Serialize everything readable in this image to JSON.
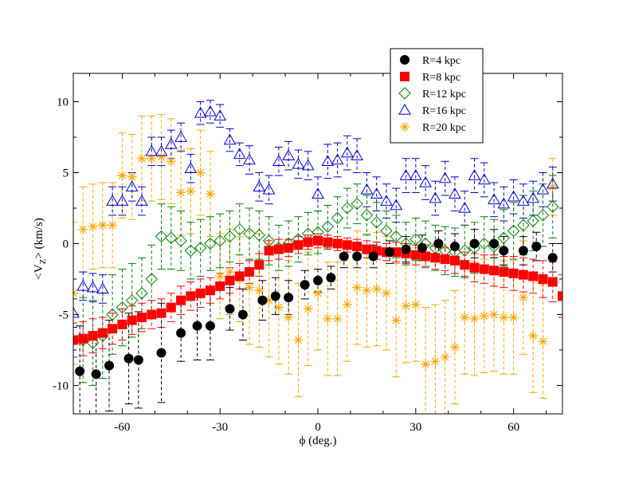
{
  "chart_data": {
    "type": "scatter",
    "title": "",
    "xlabel": "ϕ (deg.)",
    "ylabel_main": "<V",
    "ylabel_sub": "Z",
    "ylabel_tail": "> (km/s)",
    "xlim": [
      -75,
      75
    ],
    "ylim": [
      -12,
      12
    ],
    "xticks": [
      -60,
      -30,
      0,
      30,
      60
    ],
    "yticks": [
      -10,
      -5,
      0,
      5,
      10
    ],
    "grid": false,
    "legend_position": "top-right",
    "series": [
      {
        "name": "R=4 kpc",
        "marker": "circle",
        "color": "#000000",
        "filled": true,
        "x": [
          -73,
          -68,
          -64,
          -58,
          -55,
          -48,
          -42,
          -37,
          -33,
          -27,
          -23,
          -17,
          -13,
          -9,
          -4,
          0,
          4,
          8,
          12,
          17,
          22,
          27,
          32,
          37,
          42,
          48,
          54,
          57,
          63,
          67,
          72
        ],
        "y": [
          -9.0,
          -9.2,
          -8.6,
          -8.1,
          -8.2,
          -7.7,
          -6.3,
          -5.8,
          -5.8,
          -4.6,
          -5.0,
          -4.0,
          -3.7,
          -3.8,
          -2.9,
          -2.6,
          -2.4,
          -0.9,
          -0.9,
          -0.9,
          -0.6,
          -0.4,
          -0.3,
          0.0,
          -0.2,
          0.0,
          0.0,
          -0.5,
          -0.5,
          -0.2,
          -1.0
        ],
        "err": [
          3.2,
          3.0,
          3.2,
          3.2,
          3.4,
          3.5,
          2.0,
          2.4,
          2.4,
          1.5,
          1.8,
          1.4,
          1.3,
          1.2,
          1.0,
          0.8,
          0.8,
          0.8,
          0.8,
          0.8,
          0.8,
          0.9,
          0.9,
          0.9,
          0.9,
          1.0,
          1.0,
          1.0,
          1.0,
          1.0,
          1.0
        ]
      },
      {
        "name": "R=8 kpc",
        "marker": "square",
        "color": "#ff0000",
        "filled": true,
        "x": [
          -75,
          -72,
          -69,
          -66,
          -63,
          -60,
          -57,
          -54,
          -51,
          -48,
          -45,
          -42,
          -39,
          -36,
          -33,
          -30,
          -27,
          -24,
          -21,
          -18,
          -15,
          -12,
          -9,
          -6,
          -3,
          0,
          3,
          6,
          9,
          12,
          15,
          18,
          21,
          24,
          27,
          30,
          33,
          36,
          39,
          42,
          45,
          48,
          51,
          54,
          57,
          60,
          63,
          66,
          69,
          72,
          75
        ],
        "y": [
          -6.8,
          -6.7,
          -6.5,
          -6.3,
          -6.0,
          -5.7,
          -5.4,
          -5.2,
          -5.0,
          -4.9,
          -4.5,
          -4.0,
          -3.7,
          -3.5,
          -3.3,
          -3.0,
          -2.6,
          -2.3,
          -2.0,
          -1.5,
          -0.5,
          -0.4,
          -0.3,
          -0.1,
          0.1,
          0.2,
          0.1,
          0.0,
          -0.1,
          -0.2,
          -0.4,
          -0.5,
          -0.6,
          -0.6,
          -0.7,
          -0.8,
          -0.9,
          -1.0,
          -1.1,
          -1.2,
          -1.5,
          -1.7,
          -1.8,
          -1.9,
          -2.0,
          -2.1,
          -2.2,
          -2.3,
          -2.5,
          -2.7,
          -3.7
        ],
        "err": [
          1.2,
          1.2,
          1.2,
          1.1,
          1.1,
          1.1,
          1.0,
          1.0,
          1.0,
          1.0,
          1.0,
          1.0,
          1.0,
          1.0,
          0.9,
          0.9,
          0.9,
          0.9,
          0.8,
          0.8,
          0.7,
          0.7,
          0.6,
          0.6,
          0.5,
          0.5,
          0.5,
          0.5,
          0.5,
          0.5,
          0.6,
          0.6,
          0.6,
          0.7,
          0.7,
          0.7,
          0.8,
          0.8,
          0.8,
          0.9,
          0.9,
          1.0,
          1.0,
          1.1,
          1.1,
          1.2,
          1.2,
          1.2,
          1.3,
          1.4,
          1.5
        ]
      },
      {
        "name": "R=12 kpc",
        "marker": "diamond",
        "color": "#008000",
        "filled": false,
        "x": [
          -72,
          -69,
          -66,
          -63,
          -60,
          -57,
          -54,
          -51,
          -48,
          -45,
          -42,
          -39,
          -36,
          -33,
          -30,
          -27,
          -24,
          -21,
          -18,
          -15,
          -12,
          -9,
          -6,
          -3,
          0,
          3,
          6,
          9,
          12,
          15,
          18,
          21,
          24,
          27,
          30,
          33,
          36,
          39,
          42,
          45,
          48,
          51,
          54,
          57,
          60,
          63,
          66,
          69,
          72
        ],
        "y": [
          -6.8,
          -7.0,
          -6.5,
          -5.0,
          -4.5,
          -4.0,
          -3.5,
          -2.5,
          0.5,
          0.4,
          0.2,
          -0.5,
          -0.3,
          0.0,
          0.2,
          0.5,
          1.0,
          0.7,
          0.6,
          0.2,
          -0.3,
          0.0,
          0.3,
          0.7,
          0.8,
          1.2,
          1.8,
          2.5,
          2.8,
          2.0,
          1.5,
          0.9,
          0.5,
          0.0,
          0.3,
          0.0,
          -0.3,
          -0.5,
          -0.6,
          -0.5,
          -0.3,
          0.0,
          -0.2,
          0.4,
          0.9,
          1.3,
          1.6,
          2.0,
          2.6
        ],
        "err": [
          3.0,
          3.0,
          3.0,
          2.8,
          2.7,
          2.6,
          2.5,
          2.4,
          2.3,
          2.2,
          2.1,
          2.0,
          2.0,
          1.9,
          1.9,
          1.8,
          1.8,
          1.8,
          1.7,
          1.7,
          1.6,
          1.6,
          1.6,
          1.5,
          1.5,
          1.5,
          1.5,
          1.4,
          1.4,
          1.4,
          1.4,
          1.4,
          1.5,
          1.5,
          1.5,
          1.6,
          1.6,
          1.7,
          1.7,
          1.8,
          1.8,
          1.9,
          1.9,
          2.0,
          2.0,
          2.1,
          2.1,
          2.2,
          2.2
        ]
      },
      {
        "name": "R=16 kpc",
        "marker": "triangle",
        "color": "#0000cd",
        "filled": false,
        "x": [
          -75,
          -72,
          -69,
          -66,
          -63,
          -60,
          -57,
          -54,
          -51,
          -48,
          -45,
          -42,
          -39,
          -36,
          -33,
          -30,
          -27,
          -24,
          -21,
          -18,
          -15,
          -12,
          -9,
          -6,
          -3,
          0,
          3,
          6,
          9,
          12,
          15,
          18,
          21,
          24,
          27,
          30,
          33,
          36,
          39,
          42,
          45,
          48,
          51,
          54,
          57,
          60,
          63,
          66,
          69,
          72
        ],
        "y": [
          -4.9,
          -3.0,
          -3.1,
          -3.2,
          3.0,
          3.0,
          4.0,
          3.0,
          6.5,
          6.5,
          7.0,
          7.5,
          5.3,
          9.2,
          9.3,
          9.0,
          7.3,
          6.3,
          5.9,
          4.0,
          3.8,
          5.8,
          6.2,
          5.6,
          5.5,
          3.5,
          5.8,
          5.9,
          6.4,
          6.2,
          3.8,
          3.5,
          3.0,
          2.7,
          4.8,
          4.8,
          4.3,
          3.2,
          4.6,
          3.5,
          2.5,
          4.8,
          4.5,
          3.1,
          2.8,
          3.3,
          3.0,
          3.2,
          3.8,
          4.2
        ],
        "err": [
          1.0,
          1.0,
          1.0,
          1.0,
          1.0,
          1.0,
          1.0,
          1.0,
          1.0,
          1.0,
          1.0,
          1.0,
          1.0,
          0.8,
          0.8,
          0.8,
          0.8,
          0.8,
          1.0,
          1.0,
          1.0,
          1.0,
          1.0,
          1.0,
          1.0,
          1.2,
          1.2,
          1.2,
          1.2,
          1.2,
          1.2,
          1.2,
          1.2,
          1.2,
          1.2,
          1.2,
          1.2,
          1.2,
          1.2,
          1.2,
          1.2,
          1.2,
          1.2,
          1.2,
          1.2,
          1.2,
          1.2,
          1.2,
          1.2,
          1.2
        ]
      },
      {
        "name": "R=20 kpc",
        "marker": "star",
        "color": "#ffa500",
        "filled": false,
        "x": [
          -75,
          -72,
          -69,
          -66,
          -63,
          -60,
          -57,
          -54,
          -51,
          -48,
          -45,
          -42,
          -39,
          -36,
          -33,
          -30,
          -27,
          -24,
          -21,
          -18,
          -15,
          -12,
          -9,
          -6,
          -3,
          0,
          3,
          6,
          9,
          12,
          15,
          18,
          21,
          24,
          27,
          30,
          33,
          36,
          39,
          42,
          45,
          48,
          51,
          54,
          57,
          60,
          63,
          66,
          69,
          72
        ],
        "y": [
          -3.5,
          1.0,
          1.2,
          1.3,
          1.3,
          4.8,
          4.7,
          6.0,
          6.0,
          6.1,
          5.8,
          3.6,
          3.7,
          5.0,
          3.5,
          -2.3,
          -2.0,
          -2.5,
          -3.1,
          -3.3,
          -4.0,
          -4.5,
          -5.2,
          -6.8,
          -4.6,
          -3.5,
          -5.3,
          -5.3,
          -4.3,
          -3.1,
          -3.3,
          -3.2,
          -3.5,
          -5.4,
          -4.4,
          -4.3,
          -8.5,
          -8.3,
          -8.0,
          -7.3,
          -5.2,
          -5.3,
          -5.1,
          -5.0,
          -5.2,
          -5.2,
          -3.8,
          -6.5,
          -6.9,
          4.0
        ],
        "err": [
          5.0,
          3.0,
          3.0,
          3.0,
          3.0,
          3.0,
          3.0,
          3.0,
          3.0,
          3.0,
          3.0,
          3.0,
          3.0,
          3.0,
          3.0,
          3.0,
          3.0,
          3.0,
          4.0,
          4.0,
          4.0,
          4.0,
          4.0,
          4.0,
          4.0,
          4.0,
          4.0,
          4.0,
          4.0,
          4.0,
          4.0,
          4.0,
          4.0,
          4.0,
          4.0,
          4.0,
          4.0,
          4.0,
          4.0,
          4.0,
          4.0,
          4.0,
          4.0,
          4.0,
          4.0,
          4.0,
          4.0,
          4.0,
          4.0,
          2.0
        ]
      }
    ]
  }
}
